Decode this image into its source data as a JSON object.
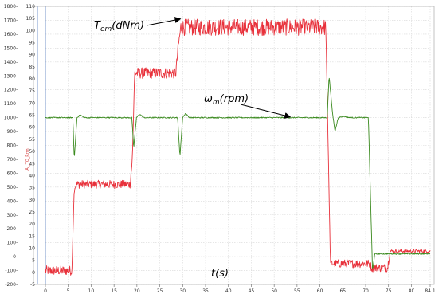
{
  "chart_data": {
    "type": "line",
    "xlabel": "t(s)",
    "x_ticks": [
      "0",
      "5",
      "10",
      "15",
      "20",
      "25",
      "30",
      "35",
      "40",
      "45",
      "50",
      "55",
      "60",
      "65",
      "70",
      "75",
      "80",
      "84.1"
    ],
    "xlim": [
      0,
      84.1
    ],
    "left_axis": {
      "ticks": [
        "-200",
        "-100",
        "0",
        "100",
        "200",
        "300",
        "400",
        "500",
        "600",
        "700",
        "800",
        "900",
        "1000",
        "1100",
        "1200",
        "1300",
        "1400",
        "1500",
        "1600",
        "1700",
        "1800"
      ],
      "range": [
        -200,
        1800
      ],
      "label": "AI_TQ_Rrm",
      "color": "#d33a3a"
    },
    "right_axis": {
      "ticks": [
        "-5",
        "0",
        "5",
        "10",
        "15",
        "20",
        "25",
        "30",
        "35",
        "40",
        "45",
        "50",
        "55",
        "60",
        "65",
        "70",
        "75",
        "80",
        "85",
        "90",
        "95",
        "100",
        "105",
        "110"
      ],
      "range": [
        -5,
        110
      ]
    },
    "grid": true,
    "series": [
      {
        "name": "T_em(dNm)",
        "color": "#e8313b",
        "axis": "left",
        "approx": true,
        "points": [
          [
            0,
            -100
          ],
          [
            5.8,
            -100
          ],
          [
            6.3,
            500
          ],
          [
            6.8,
            520
          ],
          [
            18.5,
            520
          ],
          [
            19.0,
            700
          ],
          [
            19.5,
            1320
          ],
          [
            28.5,
            1320
          ],
          [
            29.0,
            1500
          ],
          [
            29.6,
            1650
          ],
          [
            61.3,
            1650
          ],
          [
            61.8,
            800
          ],
          [
            62.3,
            -50
          ],
          [
            70.8,
            -50
          ],
          [
            71.3,
            -80
          ],
          [
            74.8,
            -80
          ],
          [
            75.3,
            40
          ],
          [
            84.1,
            40
          ]
        ]
      },
      {
        "name": "ω_m(rpm)",
        "color": "#3a8a1e",
        "axis": "left",
        "approx": true,
        "points": [
          [
            0,
            1000
          ],
          [
            6.0,
            1000
          ],
          [
            6.3,
            700
          ],
          [
            6.9,
            1000
          ],
          [
            7.6,
            1020
          ],
          [
            8.5,
            1000
          ],
          [
            18.9,
            1000
          ],
          [
            19.3,
            780
          ],
          [
            19.9,
            1000
          ],
          [
            20.6,
            1025
          ],
          [
            21.5,
            1000
          ],
          [
            28.9,
            1000
          ],
          [
            29.4,
            720
          ],
          [
            30.0,
            1000
          ],
          [
            30.6,
            1030
          ],
          [
            31.5,
            1000
          ],
          [
            61.6,
            1000
          ],
          [
            62.0,
            1300
          ],
          [
            62.8,
            1020
          ],
          [
            63.3,
            900
          ],
          [
            64.0,
            1000
          ],
          [
            65.2,
            1010
          ],
          [
            66.5,
            1000
          ],
          [
            70.6,
            1000
          ],
          [
            71.0,
            500
          ],
          [
            71.5,
            -100
          ],
          [
            72.0,
            20
          ],
          [
            84.1,
            20
          ]
        ]
      }
    ],
    "annotations": [
      {
        "base": "T",
        "sub": "em",
        "rest": "(dNm)",
        "points_at": [
          29.5,
          1710
        ]
      },
      {
        "base": "ω",
        "sub": "m",
        "rest": "(rpm)",
        "points_at": [
          53.5,
          1005
        ]
      }
    ]
  }
}
